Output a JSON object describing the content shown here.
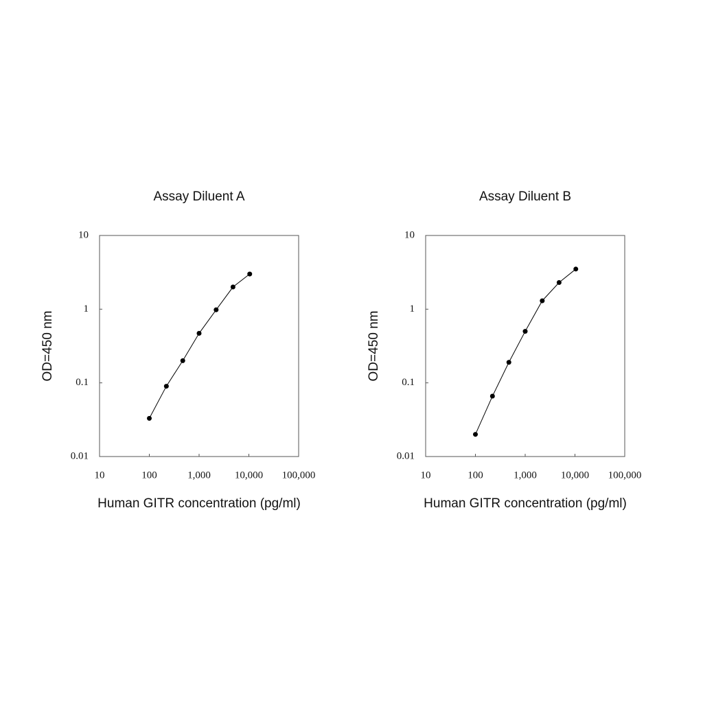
{
  "chart_data": [
    {
      "type": "line",
      "title": "Assay Diluent A",
      "x_label": "Human GITR concentration (pg/ml)",
      "y_label": "OD=450 nm",
      "log_x": true,
      "log_y": true,
      "grid": false,
      "xlim": [
        10,
        100000
      ],
      "ylim": [
        0.01,
        10
      ],
      "xticks": [
        10,
        100,
        {
          "value": 1000,
          "label": "1,000"
        },
        {
          "value": 10000,
          "label": "10,000"
        },
        {
          "value": 100000,
          "label": "100,000"
        }
      ],
      "yticks": [
        0.01,
        0.1,
        1,
        10
      ],
      "series": [
        {
          "color": "#000000",
          "x": [
            100,
            220,
            470,
            1000,
            2200,
            4800,
            10400
          ],
          "values": [
            0.033,
            0.09,
            0.2,
            0.47,
            0.98,
            2.0,
            3.0
          ]
        }
      ]
    },
    {
      "type": "line",
      "title": "Assay Diluent B",
      "x_label": "Human GITR concentration (pg/ml)",
      "y_label": "OD=450 nm",
      "log_x": true,
      "log_y": true,
      "grid": false,
      "xlim": [
        10,
        100000
      ],
      "ylim": [
        0.01,
        10
      ],
      "xticks": [
        10,
        100,
        {
          "value": 1000,
          "label": "1,000"
        },
        {
          "value": 10000,
          "label": "10,000"
        },
        {
          "value": 100000,
          "label": "100,000"
        }
      ],
      "yticks": [
        0.01,
        0.1,
        1,
        10
      ],
      "series": [
        {
          "color": "#000000",
          "x": [
            100,
            220,
            470,
            1000,
            2200,
            4800,
            10400
          ],
          "values": [
            0.02,
            0.066,
            0.19,
            0.5,
            1.3,
            2.3,
            3.5
          ]
        }
      ]
    }
  ]
}
